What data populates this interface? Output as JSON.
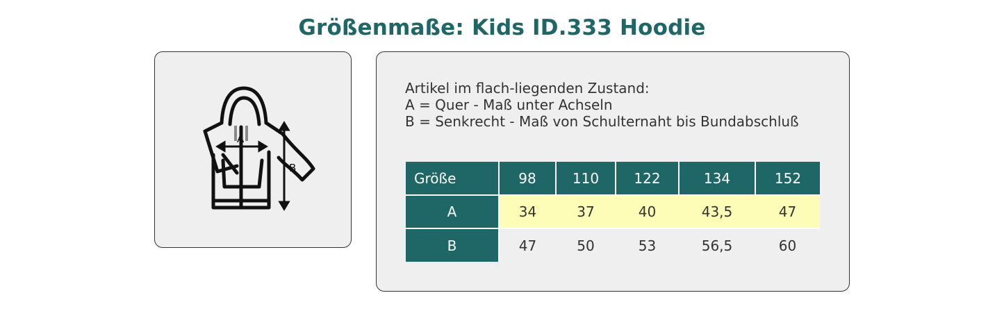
{
  "title": "Größenmaße: Kids ID.333 Hoodie",
  "diagram": {
    "icon": "hoodie-measure-icon",
    "label_a": "A",
    "label_b": "B"
  },
  "description": {
    "line1": "Artikel im flach-liegenden Zustand:",
    "line2": "A = Quer - Maß unter Achseln",
    "line3": "B = Senkrecht - Maß von Schulternaht bis Bundabschluß"
  },
  "size_table": {
    "header_label": "Größe",
    "sizes": [
      "98",
      "110",
      "122",
      "134",
      "152"
    ],
    "rows": [
      {
        "label": "A",
        "values": [
          "34",
          "37",
          "40",
          "43,5",
          "47"
        ]
      },
      {
        "label": "B",
        "values": [
          "47",
          "50",
          "53",
          "56,5",
          "60"
        ]
      }
    ]
  },
  "colors": {
    "accent": "#1f6766",
    "highlight_row": "#fdfdb7",
    "card_bg": "#efefef"
  }
}
